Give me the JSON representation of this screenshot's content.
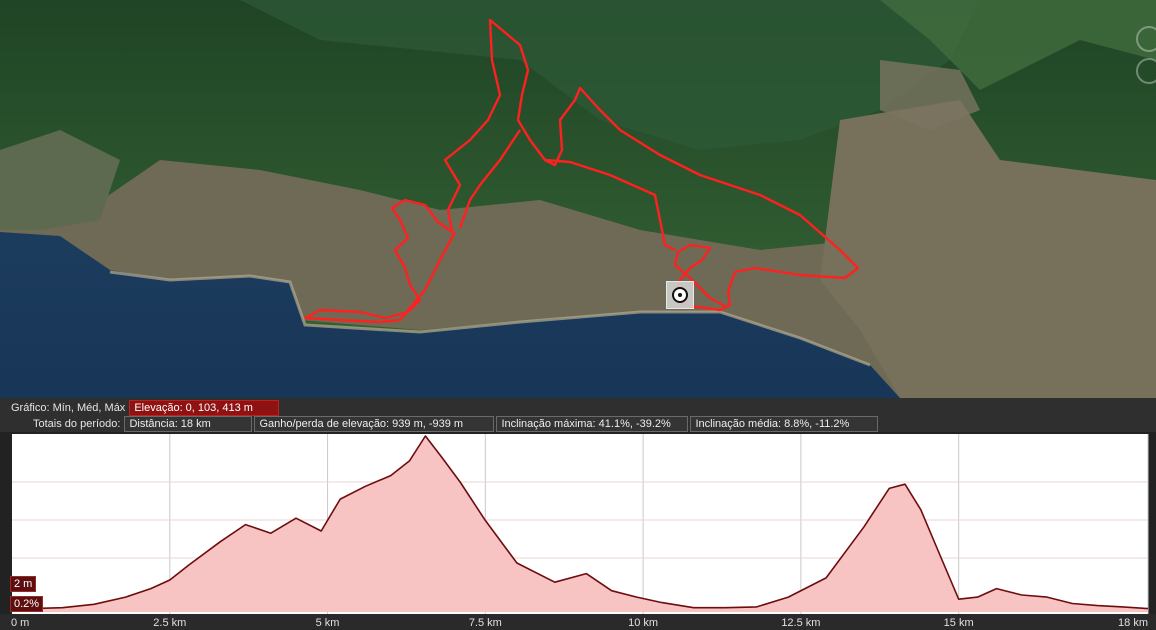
{
  "map": {
    "route_color": "#ff2020",
    "start_marker_icon": "target-icon"
  },
  "info": {
    "chart_label": "Gráfico: Mín, Méd, Máx",
    "elevation_box": "Elevação: 0, 103, 413 m",
    "period_label": "Totais do período:",
    "distance": "Distância: 18 km",
    "gain_loss": "Ganho/perda de elevação: 939 m, -939 m",
    "max_slope": "Inclinação máxima: 41.1%, -39.2%",
    "avg_slope": "Inclinação média: 8.8%, -11.2%"
  },
  "chart": {
    "cursor_elevation": "2 m",
    "cursor_slope": "0.2%",
    "fill_color": "#f7c3c3",
    "line_color": "#6e0d0d"
  },
  "chart_data": {
    "type": "area",
    "title": "",
    "xlabel": "",
    "ylabel": "",
    "x_ticks": [
      "0 m",
      "2.5 km",
      "5 km",
      "7.5 km",
      "10 km",
      "12.5 km",
      "15 km",
      "18 km"
    ],
    "xlim": [
      0,
      18
    ],
    "ylim": [
      0,
      413
    ],
    "x_unit": "km",
    "y_unit": "m",
    "series": [
      {
        "x": [
          0,
          0.3,
          0.8,
          1.3,
          1.8,
          2.2,
          2.5,
          2.8,
          3.3,
          3.7,
          4.1,
          4.5,
          4.9,
          5.2,
          5.6,
          6.0,
          6.3,
          6.55,
          6.8,
          7.1,
          7.5,
          8.0,
          8.6,
          9.1,
          9.5,
          9.9,
          10.3,
          10.8,
          11.3,
          11.8,
          12.3,
          12.9,
          13.5,
          13.9,
          14.15,
          14.4,
          14.7,
          15.0,
          15.3,
          15.6,
          16.0,
          16.4,
          16.8,
          17.2,
          17.6,
          18.0
        ],
        "y": [
          4,
          8,
          10,
          18,
          35,
          55,
          75,
          110,
          165,
          205,
          185,
          220,
          190,
          265,
          295,
          320,
          355,
          413,
          365,
          305,
          215,
          115,
          70,
          90,
          50,
          35,
          22,
          10,
          10,
          12,
          35,
          80,
          200,
          290,
          300,
          240,
          135,
          30,
          35,
          55,
          40,
          35,
          20,
          15,
          12,
          8
        ]
      }
    ]
  }
}
